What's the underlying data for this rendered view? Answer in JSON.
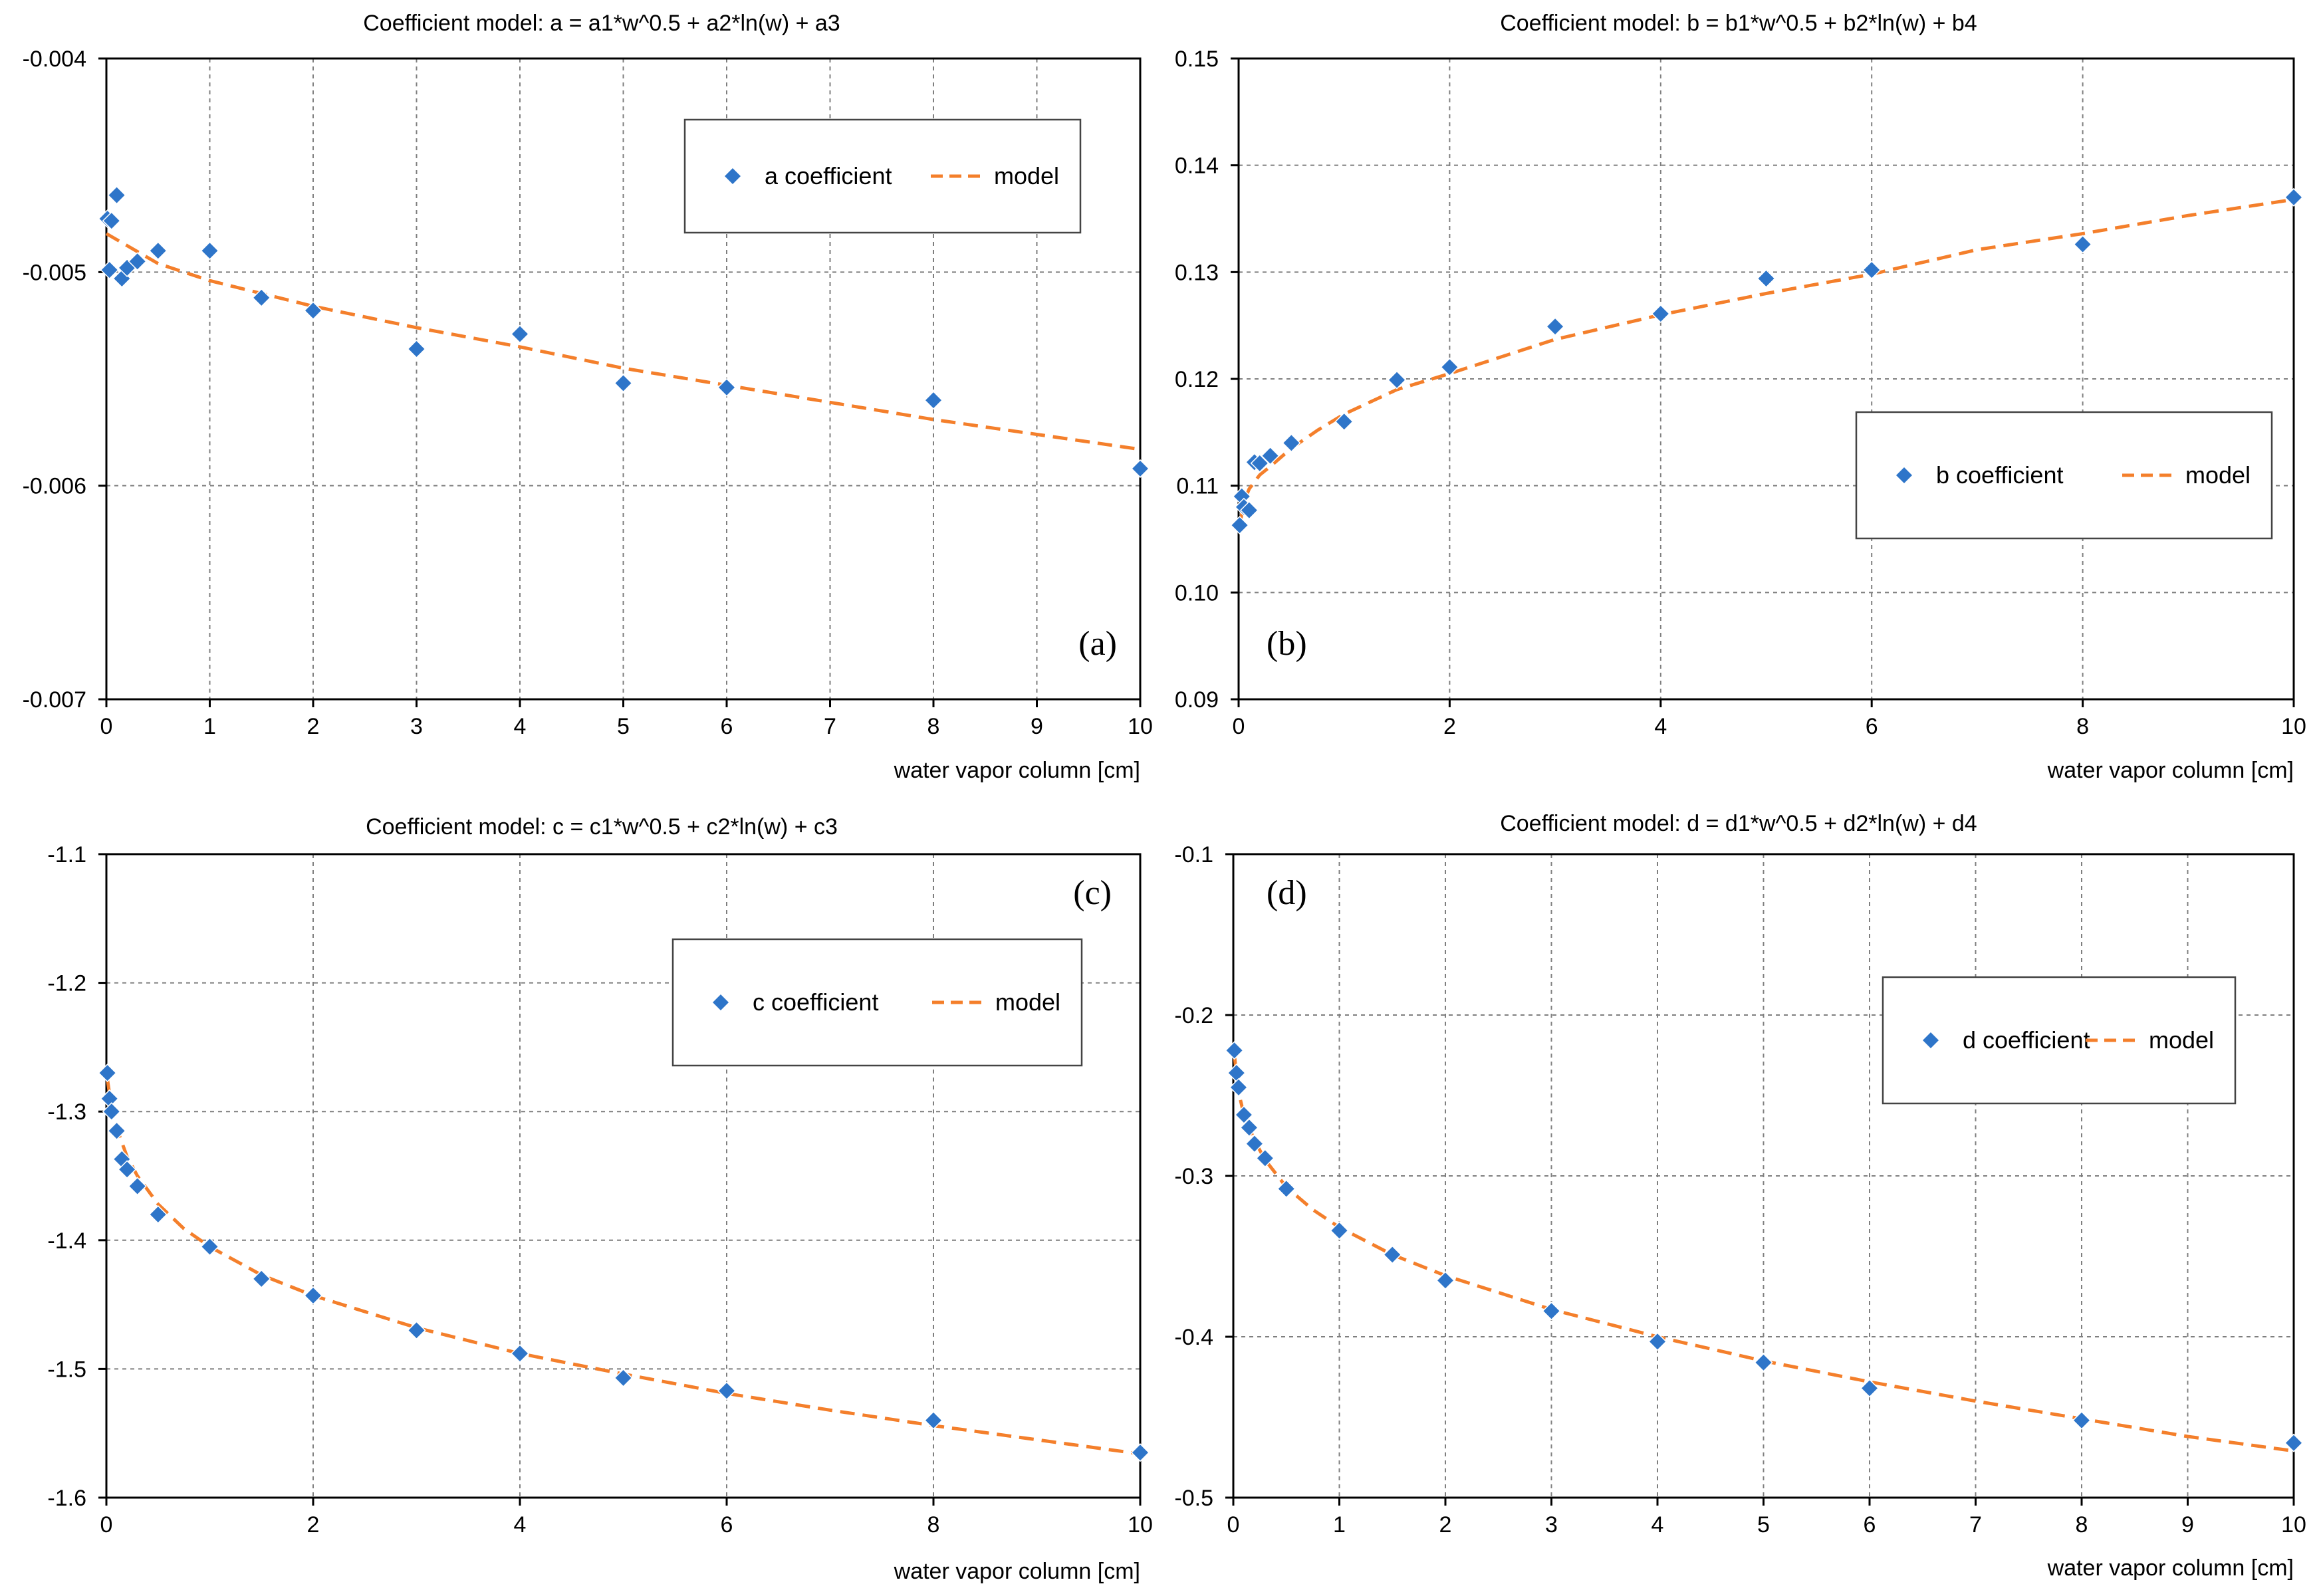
{
  "colors": {
    "marker": "#2E75C9",
    "model": "#F47F2B",
    "grid": "#7f7f7f",
    "axis": "#000000"
  },
  "chart_data": [
    {
      "id": "a",
      "type": "scatter",
      "title": "Coefficient model: a = a1*w^0.5 + a2*ln(w) + a3",
      "xlabel": "water vapor column [cm]",
      "ylabel": "",
      "panel_label": "(a)",
      "xlim": [
        0,
        10
      ],
      "ylim": [
        -0.007,
        -0.004
      ],
      "xticks": [
        0,
        1,
        2,
        3,
        4,
        5,
        6,
        7,
        8,
        9,
        10
      ],
      "xtick_labels": [
        "0",
        "1",
        "2",
        "3",
        "4",
        "5",
        "6",
        "7",
        "8",
        "9",
        "10"
      ],
      "yticks": [
        -0.004,
        -0.005,
        -0.006,
        -0.007
      ],
      "ytick_labels": [
        "-0.004",
        "-0.005",
        "-0.006",
        "-0.007"
      ],
      "legend": {
        "position": "top-right",
        "series_label": "a coefficient",
        "model_label": "model"
      },
      "series": [
        {
          "name": "a coefficient",
          "x": [
            0.01,
            0.03,
            0.05,
            0.1,
            0.15,
            0.2,
            0.3,
            0.5,
            1.0,
            1.5,
            2.0,
            3.0,
            4.0,
            5.0,
            6.0,
            8.0,
            10.0
          ],
          "y": [
            -0.00475,
            -0.00499,
            -0.00476,
            -0.00464,
            -0.00503,
            -0.00498,
            -0.00495,
            -0.0049,
            -0.0049,
            -0.00512,
            -0.00518,
            -0.00536,
            -0.00529,
            -0.00552,
            -0.00554,
            -0.0056,
            -0.00592
          ]
        },
        {
          "name": "model",
          "x": [
            0,
            0.5,
            1,
            1.5,
            2,
            3,
            4,
            5,
            6,
            7,
            8,
            9,
            10
          ],
          "y": [
            -0.00482,
            -0.00496,
            -0.00504,
            -0.0051,
            -0.00516,
            -0.00526,
            -0.00535,
            -0.00545,
            -0.00553,
            -0.00561,
            -0.00569,
            -0.00576,
            -0.00583
          ]
        }
      ]
    },
    {
      "id": "b",
      "type": "scatter",
      "title": "Coefficient model: b = b1*w^0.5 + b2*ln(w) + b4",
      "xlabel": "water vapor column [cm]",
      "ylabel": "",
      "panel_label": "(b)",
      "xlim": [
        0,
        10
      ],
      "ylim": [
        0.09,
        0.15
      ],
      "xticks": [
        0,
        2,
        4,
        6,
        8,
        10
      ],
      "xtick_labels": [
        "0",
        "2",
        "4",
        "6",
        "8",
        "10"
      ],
      "yticks": [
        0.15,
        0.14,
        0.13,
        0.12,
        0.11,
        0.1,
        0.09
      ],
      "ytick_labels": [
        "0.15",
        "0.14",
        "0.13",
        "0.12",
        "0.11",
        "0.10",
        "0.09"
      ],
      "legend": {
        "position": "right",
        "series_label": "b coefficient",
        "model_label": "model"
      },
      "series": [
        {
          "name": "b coefficient",
          "x": [
            0.01,
            0.03,
            0.05,
            0.1,
            0.15,
            0.2,
            0.3,
            0.5,
            1.0,
            1.5,
            2.0,
            3.0,
            4.0,
            5.0,
            6.0,
            8.0,
            10.0
          ],
          "y": [
            0.1063,
            0.109,
            0.108,
            0.1077,
            0.1122,
            0.1121,
            0.1128,
            0.114,
            0.116,
            0.1199,
            0.1211,
            0.1249,
            0.1261,
            0.1294,
            0.1302,
            0.1326,
            0.137
          ]
        },
        {
          "name": "model",
          "x": [
            0.02,
            0.05,
            0.1,
            0.2,
            0.3,
            0.5,
            0.75,
            1,
            1.5,
            2,
            3,
            4,
            5,
            6,
            7,
            8,
            9,
            10
          ],
          "y": [
            0.1068,
            0.1085,
            0.1097,
            0.111,
            0.1118,
            0.1135,
            0.1152,
            0.1167,
            0.119,
            0.1205,
            0.1237,
            0.126,
            0.128,
            0.1298,
            0.1321,
            0.1336,
            0.1353,
            0.1368
          ]
        }
      ]
    },
    {
      "id": "c",
      "type": "scatter",
      "title": "Coefficient model: c = c1*w^0.5 + c2*ln(w) + c3",
      "xlabel": "water vapor column [cm]",
      "ylabel": "",
      "panel_label": "(c)",
      "xlim": [
        0,
        10
      ],
      "ylim": [
        -1.6,
        -1.1
      ],
      "xticks": [
        0,
        2,
        4,
        6,
        8,
        10
      ],
      "xtick_labels": [
        "0",
        "2",
        "4",
        "6",
        "8",
        "10"
      ],
      "yticks": [
        -1.1,
        -1.2,
        -1.3,
        -1.4,
        -1.5,
        -1.6
      ],
      "ytick_labels": [
        "-1.1",
        "-1.2",
        "-1.3",
        "-1.4",
        "-1.5",
        "-1.6"
      ],
      "legend": {
        "position": "top-right",
        "series_label": "c coefficient",
        "model_label": "model"
      },
      "series": [
        {
          "name": "c coefficient",
          "x": [
            0.01,
            0.03,
            0.05,
            0.1,
            0.15,
            0.2,
            0.3,
            0.5,
            1.0,
            1.5,
            2.0,
            3.0,
            4.0,
            5.0,
            6.0,
            8.0,
            10.0
          ],
          "y": [
            -1.27,
            -1.29,
            -1.3,
            -1.315,
            -1.337,
            -1.345,
            -1.358,
            -1.38,
            -1.405,
            -1.43,
            -1.443,
            -1.47,
            -1.488,
            -1.507,
            -1.517,
            -1.54,
            -1.565
          ]
        },
        {
          "name": "model",
          "x": [
            0.01,
            0.05,
            0.1,
            0.2,
            0.3,
            0.5,
            0.75,
            1,
            1.5,
            2,
            3,
            4,
            5,
            6,
            7,
            8,
            9,
            10
          ],
          "y": [
            -1.275,
            -1.297,
            -1.313,
            -1.335,
            -1.35,
            -1.372,
            -1.391,
            -1.405,
            -1.427,
            -1.443,
            -1.468,
            -1.488,
            -1.504,
            -1.519,
            -1.532,
            -1.544,
            -1.555,
            -1.566
          ]
        }
      ]
    },
    {
      "id": "d",
      "type": "scatter",
      "title": "Coefficient model: d = d1*w^0.5 + d2*ln(w) + d4",
      "xlabel": "water vapor column [cm]",
      "ylabel": "",
      "panel_label": "(d)",
      "xlim": [
        0,
        10
      ],
      "ylim": [
        -0.5,
        -0.1
      ],
      "xticks": [
        0,
        1,
        2,
        3,
        4,
        5,
        6,
        7,
        8,
        9,
        10
      ],
      "xtick_labels": [
        "0",
        "1",
        "2",
        "3",
        "4",
        "5",
        "6",
        "7",
        "8",
        "9",
        "10"
      ],
      "yticks": [
        -0.1,
        -0.2,
        -0.3,
        -0.4,
        -0.5
      ],
      "ytick_labels": [
        "-0.1",
        "-0.2",
        "-0.3",
        "-0.4",
        "-0.5"
      ],
      "legend": {
        "position": "right",
        "series_label": "d coefficient",
        "model_label": "model"
      },
      "series": [
        {
          "name": "d coefficient",
          "x": [
            0.01,
            0.03,
            0.05,
            0.1,
            0.15,
            0.2,
            0.3,
            0.5,
            1.0,
            1.5,
            2.0,
            3.0,
            4.0,
            5.0,
            6.0,
            8.0,
            10.0
          ],
          "y": [
            -0.222,
            -0.236,
            -0.245,
            -0.262,
            -0.27,
            -0.28,
            -0.289,
            -0.308,
            -0.334,
            -0.349,
            -0.365,
            -0.384,
            -0.403,
            -0.416,
            -0.432,
            -0.452,
            -0.466
          ]
        },
        {
          "name": "model",
          "x": [
            0.01,
            0.05,
            0.1,
            0.2,
            0.3,
            0.5,
            0.75,
            1,
            1.5,
            2,
            3,
            4,
            5,
            6,
            7,
            8,
            9,
            10
          ],
          "y": [
            -0.225,
            -0.248,
            -0.262,
            -0.278,
            -0.29,
            -0.307,
            -0.321,
            -0.332,
            -0.349,
            -0.362,
            -0.383,
            -0.4,
            -0.415,
            -0.428,
            -0.44,
            -0.451,
            -0.462,
            -0.471
          ]
        }
      ]
    }
  ]
}
